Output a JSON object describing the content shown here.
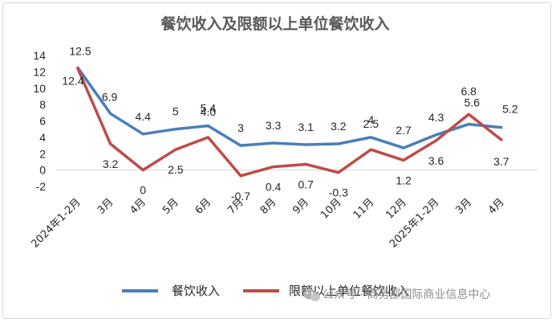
{
  "chart_data": {
    "type": "line",
    "title": "餐饮收入及限额以上单位餐饮收入",
    "categories": [
      "2024年1-2月",
      "3月",
      "4月",
      "5月",
      "6月",
      "7月",
      "8月",
      "9月",
      "10月",
      "11月",
      "12月",
      "2025年1-2月",
      "3月",
      "4月"
    ],
    "series": [
      {
        "name": "餐饮收入",
        "color": "#4a7ebb",
        "values": [
          12.5,
          6.9,
          4.4,
          5,
          5.4,
          3,
          3.3,
          3.1,
          3.2,
          4,
          2.7,
          4.3,
          5.6,
          5.2
        ]
      },
      {
        "name": "限额以上单位餐饮收入",
        "color": "#be4b48",
        "values": [
          12.4,
          3.2,
          0,
          2.5,
          4.0,
          -0.7,
          0.4,
          0.7,
          -0.3,
          2.5,
          1.2,
          3.6,
          6.8,
          3.7
        ]
      }
    ],
    "series_labels": [
      [
        "12.5",
        "6.9",
        "4.4",
        "5",
        "5.4",
        "3",
        "3.3",
        "3.1",
        "3.2",
        "4",
        "2.7",
        "4.3",
        "5.6",
        "5.2"
      ],
      [
        "12.4",
        "3.2",
        "0",
        "2.5",
        "4.0",
        "-0.7",
        "0.4",
        "0.7",
        "-0.3",
        "2.5",
        "1.2",
        "3.6",
        "6.8",
        "3.7"
      ]
    ],
    "ylim": [
      -2,
      14
    ],
    "yticks": [
      "14",
      "12",
      "10",
      "8",
      "6",
      "4",
      "2",
      "0",
      "-2"
    ],
    "grid": false,
    "legend_position": "bottom"
  },
  "watermark": {
    "icon": "wechat-icon",
    "text": "公众号 · 商务部国际商业信息中心"
  }
}
